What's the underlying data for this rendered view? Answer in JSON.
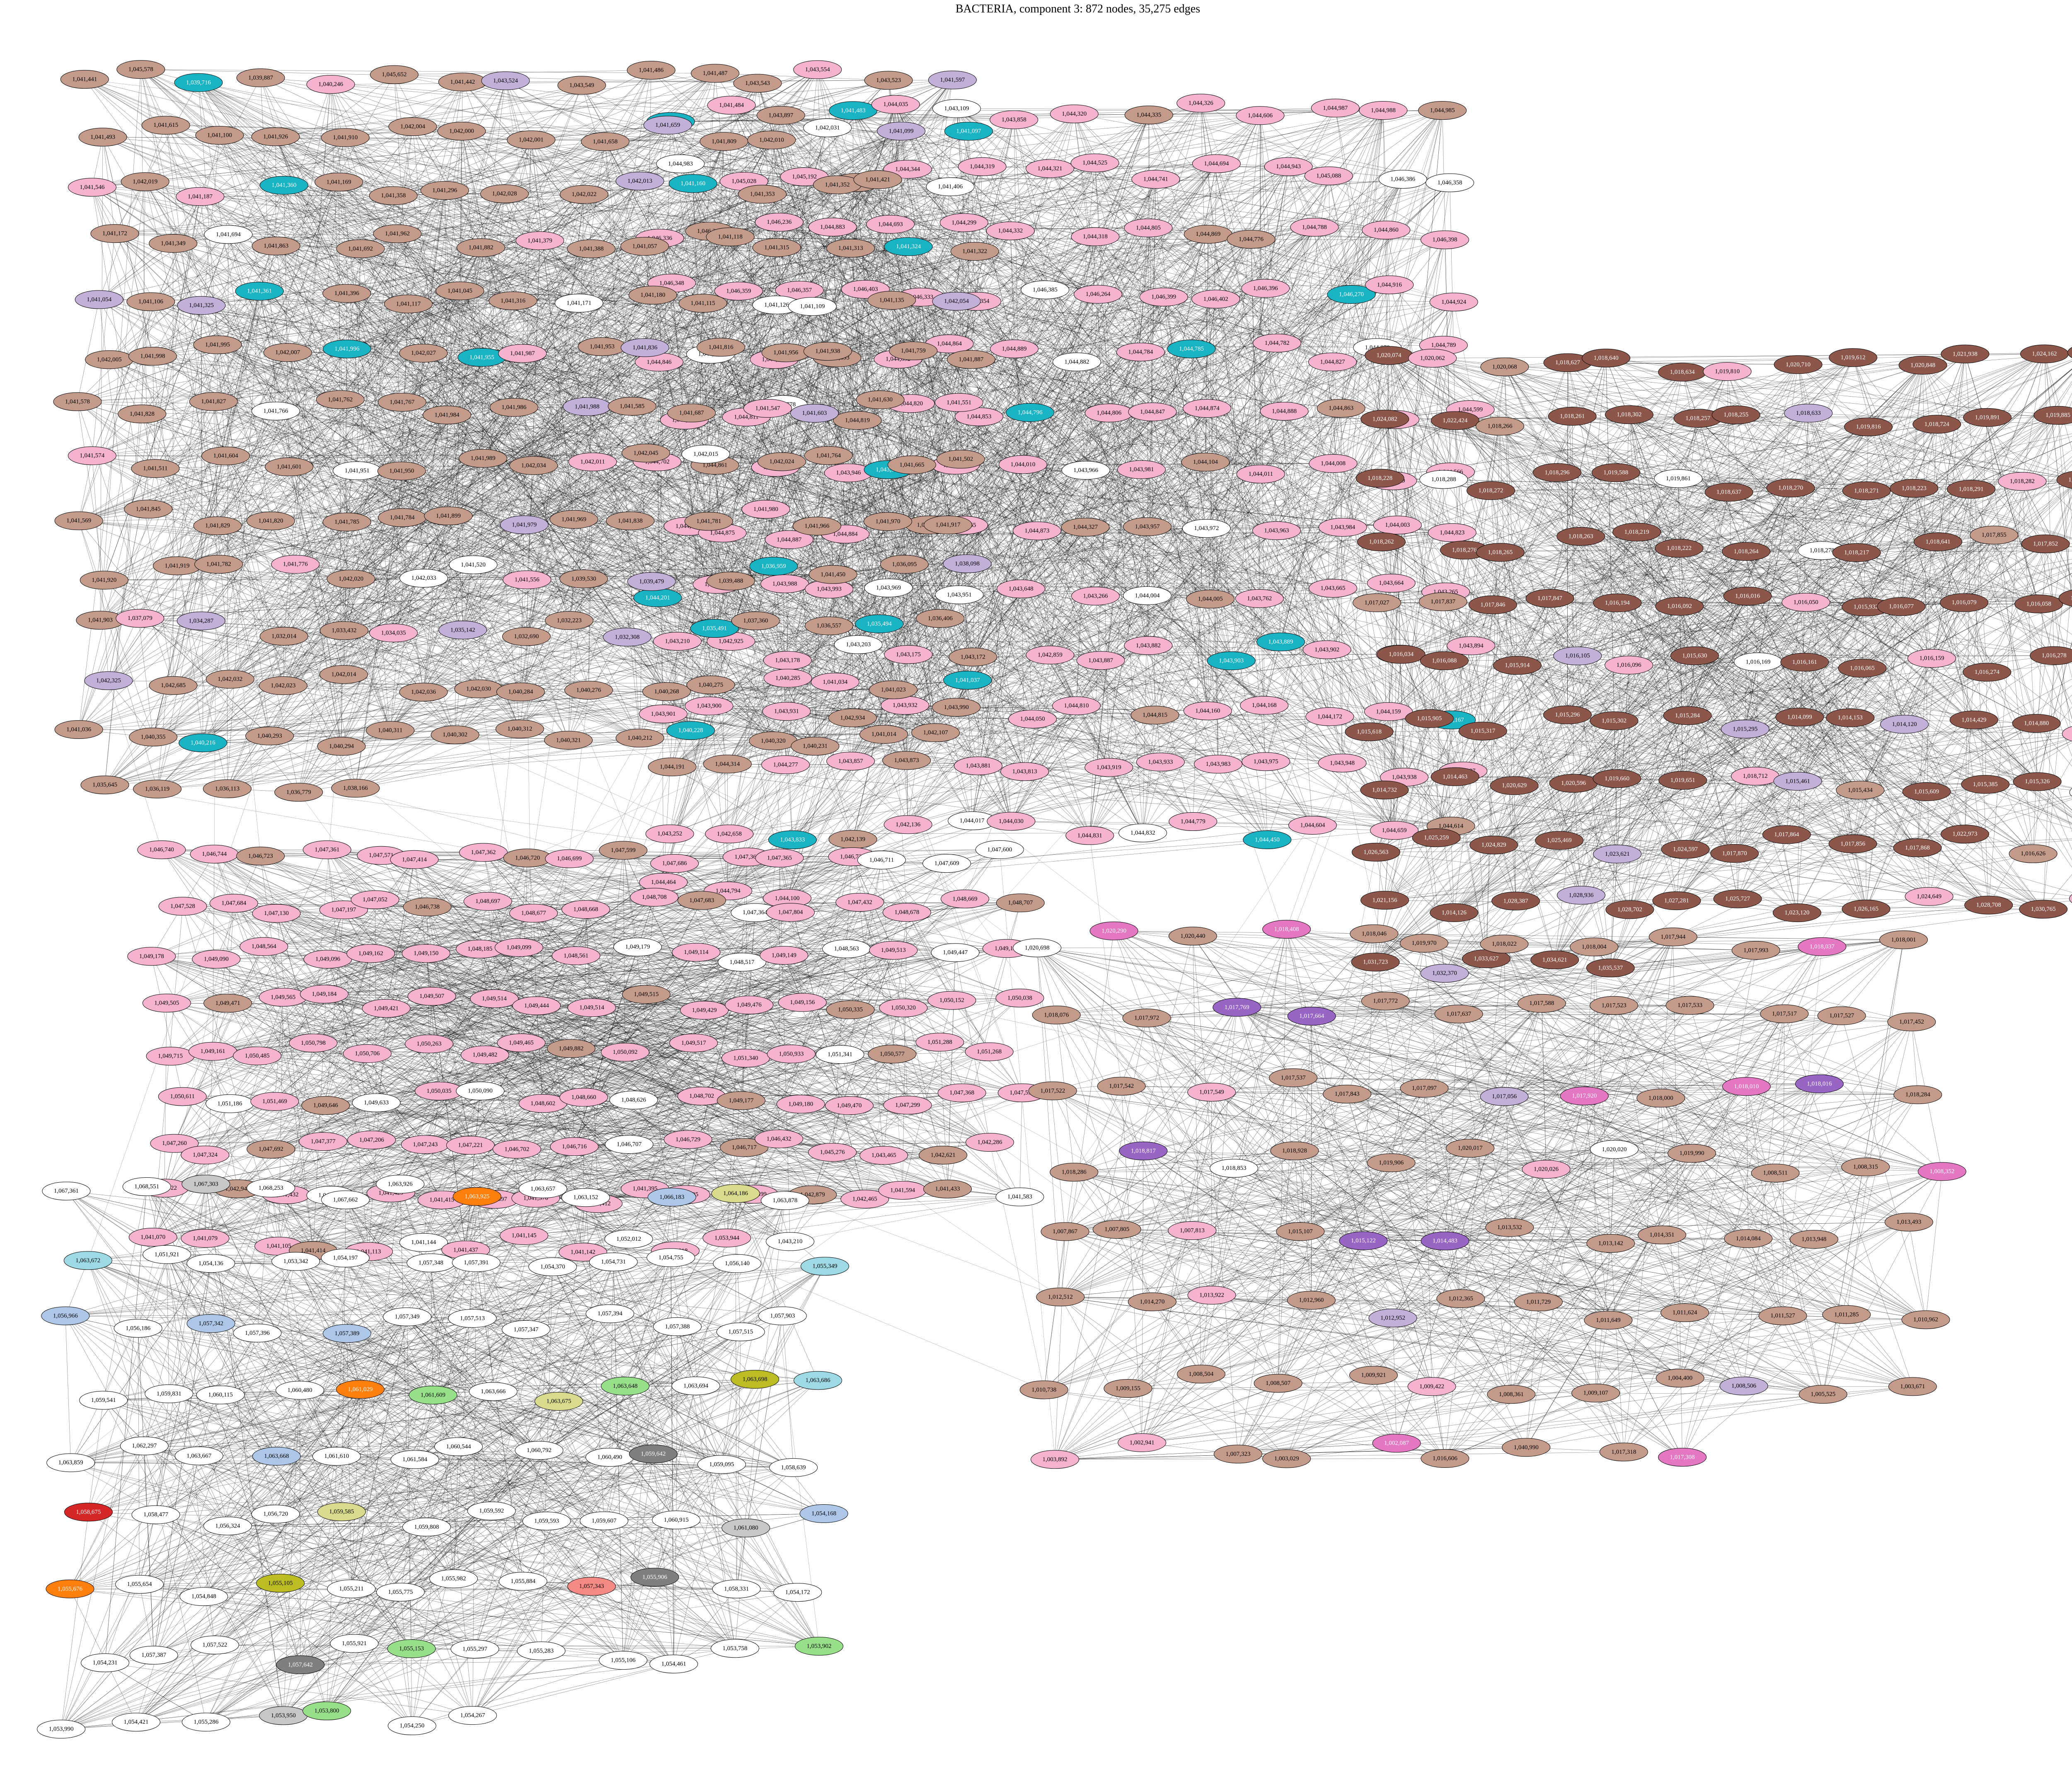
{
  "title": "BACTERIA, component 3: 872 nodes, 35,275 edges",
  "colors": {
    "pink": "#f5b3cf",
    "tan": "#c49a8a",
    "cyan": "#1ab3c4",
    "white": "#ffffff",
    "lavender": "#c3b0d8",
    "purple": "#9865c4",
    "red": "#d62728",
    "salmon": "#f58a85",
    "green": "#2ca02c",
    "lightgreen": "#98df8a",
    "orange": "#ff7f0e",
    "lightorange": "#ffbb78",
    "olive": "#bcbd22",
    "lightolive": "#dbdb8d",
    "blue": "#1f77b4",
    "lightblue": "#aec7e8",
    "lightcyan": "#9edae5",
    "brown": "#8c564b",
    "magenta": "#e377c2",
    "grey": "#7f7f7f",
    "lightgrey": "#c7c7c7"
  },
  "clusters": [
    {
      "id": "top-center",
      "fill": "pink",
      "mixed": [
        "tan",
        "cyan",
        "white"
      ],
      "labels": [
        "1,042,073",
        "1,041,484",
        "1,043,897",
        "1,041,483",
        "1,044,035",
        "1,043,109",
        "1,043,858",
        "1,044,320",
        "1,044,335",
        "1,044,326",
        "1,044,606",
        "1,044,987",
        "1,044,988",
        "1,044,985",
        "1,044,983",
        "1,045,028",
        "1,045,192",
        "1,044,190",
        "1,044,344",
        "1,044,319",
        "1,044,321",
        "1,044,525",
        "1,044,741",
        "1,044,694",
        "1,044,943",
        "1,045,088",
        "1,046,386",
        "1,046,358",
        "1,046,336",
        "1,046,318",
        "1,046,236",
        "1,044,883",
        "1,044,693",
        "1,044,299",
        "1,044,332",
        "1,044,318",
        "1,044,805",
        "1,044,869",
        "1,044,776",
        "1,044,788",
        "1,044,860",
        "1,046,398",
        "1,046,348",
        "1,046,359",
        "1,046,357",
        "1,046,403",
        "1,046,333",
        "1,046,354",
        "1,046,385",
        "1,046,264",
        "1,046,399",
        "1,046,402",
        "1,046,396",
        "1,046,270",
        "1,044,916",
        "1,044,924",
        "1,044,846",
        "1,044,848",
        "1,044,855",
        "1,044,893",
        "1,044,892",
        "1,044,864",
        "1,044,889",
        "1,044,882",
        "1,044,784",
        "1,044,785",
        "1,044,782",
        "1,044,827",
        "1,044,878",
        "1,044,789",
        "1,044,821",
        "1,044,811",
        "1,044,778",
        "1,044,819",
        "1,044,820",
        "1,044,853",
        "1,044,796",
        "1,044,806",
        "1,044,847",
        "1,044,874",
        "1,044,888",
        "1,044,863",
        "1,044,704",
        "1,044,599",
        "1,044,702",
        "1,044,861",
        "1,043,979",
        "1,043,946",
        "1,043,953",
        "1,043,978",
        "1,044,010",
        "1,043,966",
        "1,043,981",
        "1,044,104",
        "1,044,011",
        "1,044,008",
        "1,044,009",
        "1,044,566",
        "1,044,655",
        "1,044,875",
        "1,044,887",
        "1,044,884",
        "1,044,871",
        "1,044,865",
        "1,044,873",
        "1,044,327",
        "1,043,957",
        "1,043,972",
        "1,043,963",
        "1,043,984",
        "1,044,003",
        "1,044,823",
        "1,044,201",
        "1,043,968",
        "1,043,988",
        "1,043,993",
        "1,043,969",
        "1,043,951",
        "1,043,648",
        "1,043,266",
        "1,044,004",
        "1,044,005",
        "1,043,762",
        "1,043,665",
        "1,043,664",
        "1,043,265",
        "1,043,210",
        "1,042,925",
        "1,043,178",
        "1,043,203",
        "1,043,175",
        "1,043,172",
        "1,042,859",
        "1,043,887",
        "1,043,882",
        "1,043,903",
        "1,043,889",
        "1,043,902",
        "1,043,895",
        "1,043,894",
        "1,043,901",
        "1,043,900",
        "1,043,931",
        "1,042,934",
        "1,043,932",
        "1,043,990",
        "1,044,050",
        "1,044,810",
        "1,044,815",
        "1,044,160",
        "1,044,168",
        "1,044,172",
        "1,044,159",
        "1,044,167",
        "1,044,191",
        "1,044,314",
        "1,044,277",
        "1,043,857",
        "1,043,873",
        "1,043,881",
        "1,043,813",
        "1,043,919",
        "1,043,933",
        "1,043,983",
        "1,043,975",
        "1,043,948",
        "1,043,938",
        "1,043,987",
        "1,043,252",
        "1,042,658",
        "1,043,833",
        "1,042,139",
        "1,042,136",
        "1,044,017",
        "1,044,030",
        "1,044,831",
        "1,044,832",
        "1,044,779",
        "1,044,450",
        "1,044,604",
        "1,044,659",
        "1,044,614",
        "1,044,464",
        "1,044,794",
        "1,044,100"
      ]
    },
    {
      "id": "top-left",
      "fill": "tan",
      "mixed": [
        "pink",
        "cyan",
        "white",
        "lavender"
      ],
      "labels": [
        "1,041,441",
        "1,045,578",
        "1,039,716",
        "1,039,887",
        "1,040,246",
        "1,045,652",
        "1,041,442",
        "1,043,524",
        "1,043,549",
        "1,041,486",
        "1,041,487",
        "1,043,543",
        "1,043,554",
        "1,043,523",
        "1,041,597",
        "1,041,493",
        "1,041,615",
        "1,041,100",
        "1,041,926",
        "1,041,910",
        "1,042,004",
        "1,042,000",
        "1,042,001",
        "1,041,658",
        "1,041,659",
        "1,041,809",
        "1,042,010",
        "1,042,031",
        "1,041,099",
        "1,041,097",
        "1,041,546",
        "1,042,019",
        "1,041,187",
        "1,041,360",
        "1,041,169",
        "1,041,358",
        "1,041,296",
        "1,042,028",
        "1,042,022",
        "1,042,013",
        "1,041,160",
        "1,041,353",
        "1,041,352",
        "1,041,421",
        "1,041,406",
        "1,041,172",
        "1,041,349",
        "1,041,694",
        "1,041,863",
        "1,041,692",
        "1,041,962",
        "1,041,882",
        "1,041,379",
        "1,041,388",
        "1,041,057",
        "1,041,118",
        "1,041,315",
        "1,041,313",
        "1,041,324",
        "1,041,322",
        "1,041,054",
        "1,041,106",
        "1,041,325",
        "1,041,361",
        "1,041,396",
        "1,041,117",
        "1,041,045",
        "1,041,316",
        "1,041,171",
        "1,041,180",
        "1,041,115",
        "1,041,126",
        "1,041,109",
        "1,041,135",
        "1,042,054",
        "1,042,005",
        "1,041,998",
        "1,041,995",
        "1,042,007",
        "1,041,996",
        "1,042,027",
        "1,041,955",
        "1,041,987",
        "1,041,953",
        "1,041,836",
        "1,041,816",
        "1,041,956",
        "1,041,938",
        "1,041,759",
        "1,041,887",
        "1,041,578",
        "1,041,828",
        "1,041,827",
        "1,041,766",
        "1,041,762",
        "1,041,767",
        "1,041,984",
        "1,041,986",
        "1,041,988",
        "1,041,585",
        "1,041,687",
        "1,041,547",
        "1,041,603",
        "1,041,630",
        "1,041,551",
        "1,041,574",
        "1,041,511",
        "1,041,604",
        "1,041,601",
        "1,041,951",
        "1,041,950",
        "1,041,989",
        "1,042,034",
        "1,042,011",
        "1,042,045",
        "1,042,015",
        "1,042,024",
        "1,041,764",
        "1,041,665",
        "1,041,502",
        "1,041,569",
        "1,041,845",
        "1,041,829",
        "1,041,820",
        "1,041,785",
        "1,041,784",
        "1,041,899",
        "1,041,979",
        "1,041,969",
        "1,041,838",
        "1,041,781",
        "1,041,980",
        "1,041,966",
        "1,041,970",
        "1,041,917",
        "1,041,920",
        "1,041,919",
        "1,041,782",
        "1,041,776",
        "1,042,020",
        "1,042,033",
        "1,041,520",
        "1,041,556",
        "1,039,530",
        "1,039,479",
        "1,039,488",
        "1,036,959",
        "1,041,450",
        "1,036,095",
        "1,038,098",
        "1,041,903",
        "1,037,079",
        "1,034,287",
        "1,032,014",
        "1,033,432",
        "1,034,035",
        "1,035,142",
        "1,032,690",
        "1,032,223",
        "1,032,308",
        "1,035,491",
        "1,037,360",
        "1,036,557",
        "1,035,494",
        "1,036,406",
        "1,042,325",
        "1,042,685",
        "1,042,032",
        "1,042,023",
        "1,042,014",
        "1,042,036",
        "1,042,030",
        "1,040,284",
        "1,040,276",
        "1,040,268",
        "1,040,275",
        "1,040,285",
        "1,041,034",
        "1,041,023",
        "1,041,037",
        "1,041,036",
        "1,040,355",
        "1,040,216",
        "1,040,293",
        "1,040,294",
        "1,040,311",
        "1,040,302",
        "1,040,312",
        "1,040,321",
        "1,040,212",
        "1,040,228",
        "1,040,320",
        "1,040,231",
        "1,041,014",
        "1,042,107",
        "1,035,645",
        "1,036,119",
        "1,036,113",
        "1,036,779",
        "1,038,166"
      ]
    },
    {
      "id": "mid-left",
      "fill": "pink",
      "mixed": [
        "tan",
        "white"
      ],
      "labels": [
        "1,046,740",
        "1,046,744",
        "1,046,723",
        "1,047,361",
        "1,047,571",
        "1,047,414",
        "1,047,362",
        "1,046,720",
        "1,046,699",
        "1,047,599",
        "1,047,686",
        "1,047,360",
        "1,047,365",
        "1,046,735",
        "1,046,711",
        "1,047,609",
        "1,047,600",
        "1,047,528",
        "1,047,684",
        "1,047,130",
        "1,047,197",
        "1,047,052",
        "1,046,738",
        "1,048,697",
        "1,048,677",
        "1,048,668",
        "1,048,708",
        "1,047,683",
        "1,047,364",
        "1,047,804",
        "1,047,432",
        "1,048,678",
        "1,048,669",
        "1,048,707",
        "1,049,178",
        "1,049,090",
        "1,048,564",
        "1,049,096",
        "1,049,162",
        "1,049,150",
        "1,048,185",
        "1,049,099",
        "1,048,561",
        "1,049,179",
        "1,049,114",
        "1,048,517",
        "1,049,149",
        "1,048,563",
        "1,049,513",
        "1,049,447",
        "1,049,117",
        "1,049,505",
        "1,049,471",
        "1,049,565",
        "1,049,184",
        "1,049,421",
        "1,049,507",
        "1,049,514",
        "1,049,444",
        "1,049,514",
        "1,049,515",
        "1,049,429",
        "1,049,476",
        "1,049,156",
        "1,050,335",
        "1,050,320",
        "1,050,152",
        "1,050,038",
        "1,049,715",
        "1,049,161",
        "1,050,485",
        "1,050,798",
        "1,050,706",
        "1,050,263",
        "1,049,482",
        "1,049,465",
        "1,049,882",
        "1,050,092",
        "1,049,517",
        "1,051,340",
        "1,050,933",
        "1,051,341",
        "1,050,577",
        "1,051,288",
        "1,051,268",
        "1,050,611",
        "1,051,186",
        "1,051,469",
        "1,049,646",
        "1,049,633",
        "1,050,035",
        "1,050,090",
        "1,048,602",
        "1,048,660",
        "1,048,626",
        "1,048,702",
        "1,049,177",
        "1,049,180",
        "1,049,470",
        "1,047,299",
        "1,047,368",
        "1,047,594",
        "1,047,260",
        "1,047,324",
        "1,047,692",
        "1,047,377",
        "1,047,206",
        "1,047,243",
        "1,047,221",
        "1,046,702",
        "1,046,716",
        "1,046,707",
        "1,046,729",
        "1,046,717",
        "1,046,432",
        "1,045,276",
        "1,043,465",
        "1,042,621",
        "1,042,286",
        "1,042,922",
        "1,042,946",
        "1,041,432",
        "1,041,430",
        "1,041,429",
        "1,041,415",
        "1,041,397",
        "1,041,370",
        "1,041,412",
        "1,041,395",
        "1,041,405",
        "1,041,599",
        "1,042,879",
        "1,042,465",
        "1,041,594",
        "1,041,433",
        "1,041,583",
        "1,041,070",
        "1,041,079",
        "1,041,105",
        "1,041,414",
        "1,041,113",
        "1,041,144",
        "1,041,437",
        "1,041,145",
        "1,041,142",
        "1,052,012",
        "1,052,018",
        "1,053,944",
        "1,043,210"
      ]
    },
    {
      "id": "right-brown",
      "fill": "brown",
      "mixed": [
        "tan",
        "white",
        "lavender",
        "pink"
      ],
      "labels": [
        "1,020,074",
        "1,020,062",
        "1,020,068",
        "1,018,627",
        "1,018,640",
        "1,018,634",
        "1,019,810",
        "1,020,710",
        "1,019,612",
        "1,020,848",
        "1,021,938",
        "1,024,162",
        "1,022,062",
        "1,024,082",
        "1,022,424",
        "1,018,266",
        "1,018,261",
        "1,018,302",
        "1,018,257",
        "1,018,255",
        "1,018,633",
        "1,019,816",
        "1,018,724",
        "1,019,891",
        "1,019,885",
        "1,018,285",
        "1,018,228",
        "1,018,288",
        "1,018,272",
        "1,018,296",
        "1,019,588",
        "1,019,861",
        "1,018,637",
        "1,018,270",
        "1,018,271",
        "1,018,223",
        "1,018,291",
        "1,018,282",
        "1,018,232",
        "1,018,262",
        "1,018,276",
        "1,018,265",
        "1,018,263",
        "1,018,219",
        "1,018,222",
        "1,018,264",
        "1,018,278",
        "1,018,217",
        "1,018,641",
        "1,017,855",
        "1,017,852",
        "1,017,845",
        "1,017,027",
        "1,017,837",
        "1,017,846",
        "1,017,847",
        "1,016,194",
        "1,016,092",
        "1,016,016",
        "1,016,050",
        "1,015,932",
        "1,016,077",
        "1,016,079",
        "1,016,058",
        "1,016,059",
        "1,016,034",
        "1,016,088",
        "1,015,914",
        "1,016,105",
        "1,016,096",
        "1,015,630",
        "1,016,169",
        "1,016,161",
        "1,016,065",
        "1,016,159",
        "1,016,274",
        "1,016,278",
        "1,015,057",
        "1,015,618",
        "1,015,905",
        "1,015,317",
        "1,015,296",
        "1,015,302",
        "1,015,284",
        "1,015,295",
        "1,014,099",
        "1,014,153",
        "1,014,120",
        "1,014,429",
        "1,014,880",
        "1,014,593",
        "1,014,732",
        "1,014,463",
        "1,020,629",
        "1,020,596",
        "1,019,660",
        "1,019,651",
        "1,018,712",
        "1,015,461",
        "1,015,434",
        "1,015,609",
        "1,015,385",
        "1,015,326",
        "1,014,903",
        "1,026,563",
        "1,025,259",
        "1,024,829",
        "1,025,469",
        "1,023,621",
        "1,024,597",
        "1,017,870",
        "1,017,864",
        "1,017,856",
        "1,017,868",
        "1,022,973",
        "1,016,626",
        "1,028,711",
        "1,021,156",
        "1,014,126",
        "1,028,387",
        "1,028,936",
        "1,028,702",
        "1,027,281",
        "1,025,727",
        "1,023,120",
        "1,026,165",
        "1,024,649",
        "1,028,708",
        "1,030,765",
        "1,030,924",
        "1,031,723",
        "1,032,370",
        "1,033,627",
        "1,034,621",
        "1,035,537"
      ]
    },
    {
      "id": "mid-right",
      "fill": "tan",
      "mixed": [
        "pink",
        "white",
        "purple",
        "lavender",
        "magenta"
      ],
      "labels": [
        "1,020,698",
        "1,020,290",
        "1,020,440",
        "1,018,408",
        "1,018,046",
        "1,019,970",
        "1,018,022",
        "1,018,004",
        "1,017,944",
        "1,017,993",
        "1,018,037",
        "1,018,001",
        "1,018,076",
        "1,017,972",
        "1,017,769",
        "1,017,664",
        "1,017,772",
        "1,017,637",
        "1,017,588",
        "1,017,523",
        "1,017,533",
        "1,017,517",
        "1,017,527",
        "1,017,452",
        "1,017,522",
        "1,017,542",
        "1,017,549",
        "1,017,537",
        "1,017,843",
        "1,017,097",
        "1,017,056",
        "1,017,920",
        "1,018,000",
        "1,018,010",
        "1,018,016",
        "1,018,284",
        "1,018,286",
        "1,018,817",
        "1,018,853",
        "1,018,928",
        "1,019,906",
        "1,020,017",
        "1,020,026",
        "1,020,020",
        "1,019,990",
        "1,008,511",
        "1,008,315",
        "1,008,352",
        "1,007,867",
        "1,007,805",
        "1,007,813",
        "1,015,107",
        "1,015,122",
        "1,014,483",
        "1,013,532",
        "1,013,142",
        "1,014,351",
        "1,014,084",
        "1,013,948",
        "1,013,493",
        "1,012,512",
        "1,014,270",
        "1,013,922",
        "1,012,960",
        "1,012,952",
        "1,012,365",
        "1,011,729",
        "1,011,649",
        "1,011,624",
        "1,011,527",
        "1,011,285",
        "1,010,962",
        "1,010,738",
        "1,009,155",
        "1,008,504",
        "1,008,507",
        "1,009,921",
        "1,009,422",
        "1,008,361",
        "1,009,107",
        "1,004,400",
        "1,008,506",
        "1,005,525",
        "1,003,671",
        "1,003,892",
        "1,002,941",
        "1,007,323",
        "1,003,029",
        "1,002,087",
        "1,016,606",
        "1,040,990",
        "1,017,318",
        "1,017,308"
      ]
    },
    {
      "id": "bottom-left",
      "fill": "white",
      "mixed": [
        "olive",
        "lightolive",
        "blue",
        "lightblue",
        "orange",
        "green",
        "lightgreen",
        "red",
        "salmon",
        "lightcyan",
        "grey",
        "lightgrey"
      ],
      "labels": [
        "1,067,361",
        "1,068,551",
        "1,067,303",
        "1,068,253",
        "1,067,662",
        "1,063,926",
        "1,063,925",
        "1,063,657",
        "1,063,152",
        "1,066,183",
        "1,064,186",
        "1,063,878",
        "1,063,672",
        "1,051,921",
        "1,054,136",
        "1,053,342",
        "1,054,197",
        "1,057,348",
        "1,057,391",
        "1,054,370",
        "1,054,731",
        "1,054,755",
        "1,056,140",
        "1,055,349",
        "1,056,966",
        "1,056,186",
        "1,057,342",
        "1,057,396",
        "1,057,389",
        "1,057,349",
        "1,057,513",
        "1,057,347",
        "1,057,394",
        "1,057,388",
        "1,057,515",
        "1,057,903",
        "1,059,541",
        "1,059,831",
        "1,060,115",
        "1,060,480",
        "1,061,029",
        "1,061,609",
        "1,063,666",
        "1,063,675",
        "1,063,648",
        "1,063,694",
        "1,063,698",
        "1,063,686",
        "1,063,859",
        "1,062,297",
        "1,063,667",
        "1,063,668",
        "1,061,610",
        "1,061,584",
        "1,060,544",
        "1,060,792",
        "1,060,490",
        "1,059,642",
        "1,059,095",
        "1,058,639",
        "1,058,675",
        "1,058,477",
        "1,056,324",
        "1,056,720",
        "1,059,585",
        "1,059,808",
        "1,059,592",
        "1,059,593",
        "1,059,607",
        "1,060,915",
        "1,061,080",
        "1,054,168",
        "1,055,676",
        "1,055,654",
        "1,054,848",
        "1,055,105",
        "1,055,211",
        "1,055,775",
        "1,055,982",
        "1,055,884",
        "1,057,343",
        "1,055,906",
        "1,058,331",
        "1,054,172",
        "1,054,231",
        "1,057,387",
        "1,057,522",
        "1,057,642",
        "1,055,921",
        "1,055,153",
        "1,055,297",
        "1,055,283",
        "1,055,106",
        "1,054,461",
        "1,053,758",
        "1,053,902",
        "1,053,990",
        "1,054,421",
        "1,055,286",
        "1,053,950",
        "1,053,800",
        "1,054,250",
        "1,054,267"
      ]
    }
  ]
}
